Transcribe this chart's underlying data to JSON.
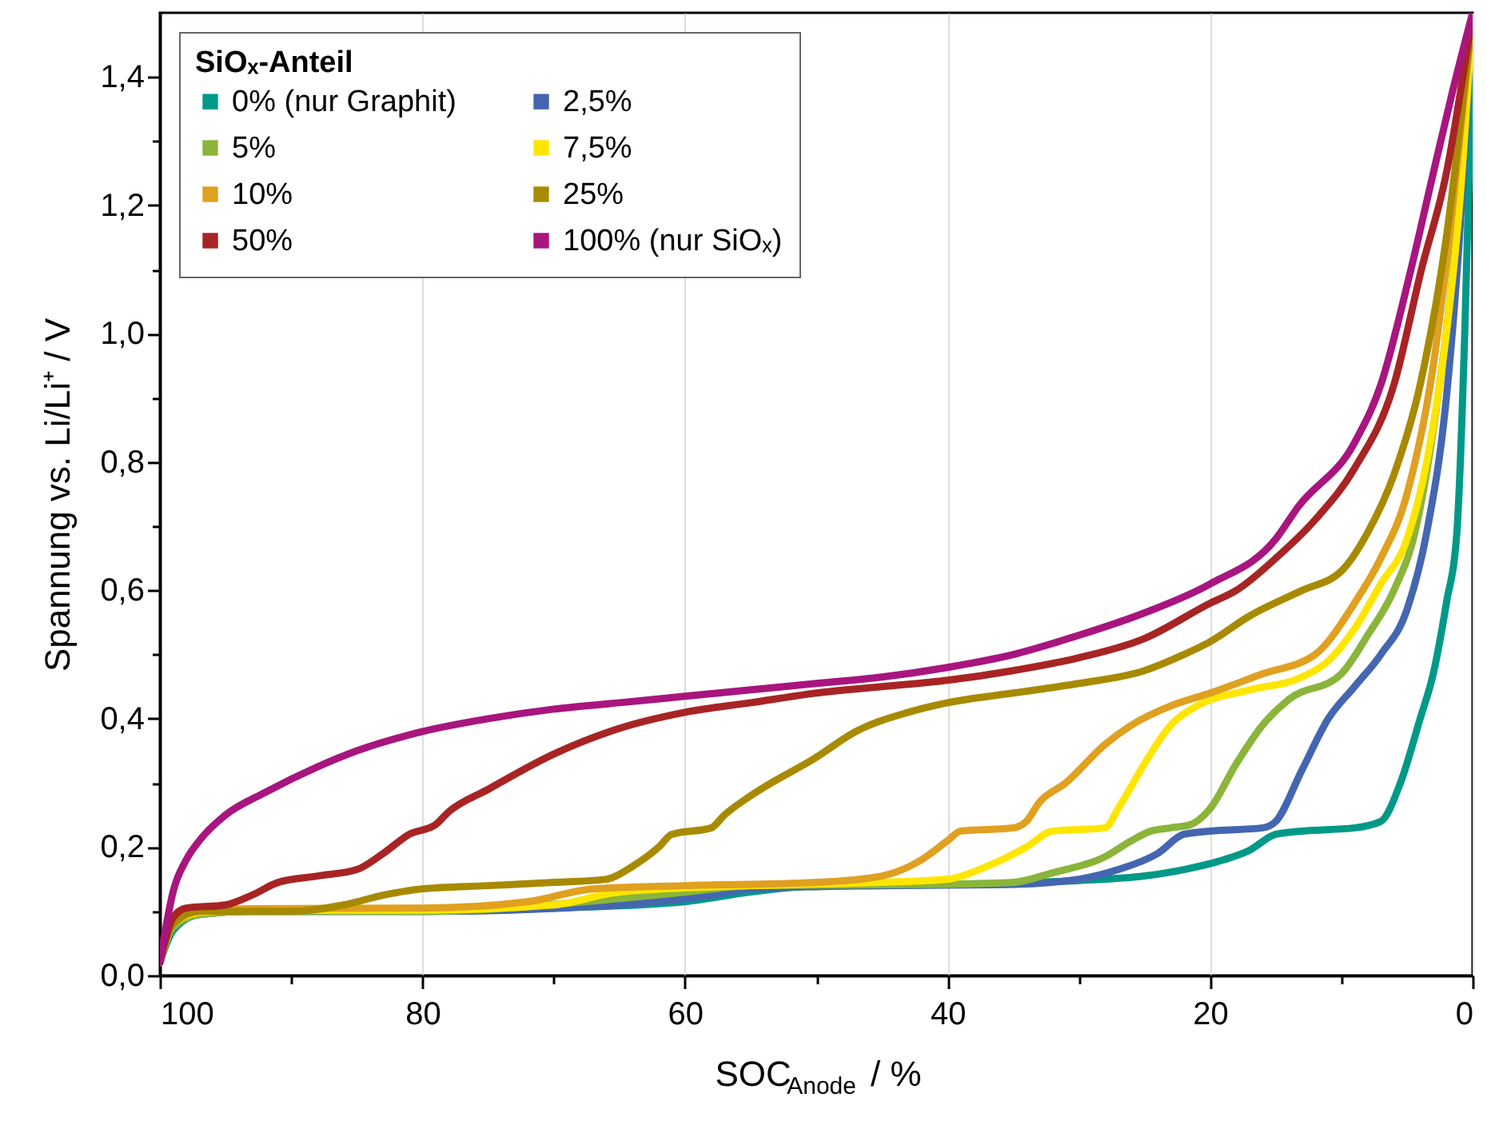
{
  "chart_data": {
    "type": "line",
    "xlabel": "SOC$_{Anode}$ / %",
    "ylabel": "Spannung vs. Li/Li⁺ / V",
    "legend_title": "SiOₓ-Anteil",
    "legend": "top left",
    "grid": "x",
    "line_style": "solid",
    "marker": "none",
    "xlim": [
      100,
      0
    ],
    "ylim": [
      0,
      1.5
    ],
    "xticks": [
      100,
      {
        "value": 90,
        "label": null
      },
      80,
      {
        "value": 70,
        "label": null
      },
      60,
      {
        "value": 50,
        "label": null
      },
      40,
      {
        "value": 30,
        "label": null
      },
      20,
      {
        "value": 10,
        "label": null
      },
      0
    ],
    "yticks": [
      {
        "value": 0,
        "label": "0,0"
      },
      {
        "value": 0.1,
        "label": null
      },
      {
        "value": 0.2,
        "label": "0,2"
      },
      {
        "value": 0.3,
        "label": null
      },
      {
        "value": 0.4,
        "label": "0,4"
      },
      {
        "value": 0.5,
        "label": null
      },
      {
        "value": 0.6,
        "label": "0,6"
      },
      {
        "value": 0.7,
        "label": null
      },
      {
        "value": 0.8,
        "label": "0,8"
      },
      {
        "value": 0.9,
        "label": null
      },
      {
        "value": 1.0,
        "label": "1,0"
      },
      {
        "value": 1.1,
        "label": null
      },
      {
        "value": 1.2,
        "label": "1,2"
      },
      {
        "value": 1.3,
        "label": null
      },
      {
        "value": 1.4,
        "label": "1,4"
      }
    ],
    "series": [
      {
        "name": "0% (nur Graphit)",
        "color": "#009988",
        "x": [
          100,
          99,
          97,
          93,
          80,
          70,
          60,
          55,
          50,
          40,
          30,
          25,
          22,
          19,
          17,
          15,
          13,
          9,
          7,
          5.5,
          4,
          3,
          2,
          1.2,
          0.6,
          0.2,
          0
        ],
        "values": [
          0.02,
          0.07,
          0.095,
          0.1,
          0.1,
          0.105,
          0.115,
          0.13,
          0.14,
          0.142,
          0.148,
          0.155,
          0.165,
          0.18,
          0.195,
          0.22,
          0.225,
          0.23,
          0.24,
          0.3,
          0.4,
          0.47,
          0.58,
          0.69,
          1.0,
          1.3,
          1.5
        ]
      },
      {
        "name": "2,5%",
        "color": "#4466b0",
        "x": [
          93,
          80,
          65,
          58,
          55,
          45,
          35,
          30,
          27,
          24,
          22,
          20,
          16,
          15,
          13,
          11,
          9,
          7,
          5,
          3.5,
          2,
          1,
          0
        ],
        "values": [
          0.1,
          0.1,
          0.11,
          0.125,
          0.135,
          0.14,
          0.142,
          0.15,
          0.165,
          0.19,
          0.22,
          0.225,
          0.23,
          0.24,
          0.32,
          0.4,
          0.45,
          0.5,
          0.57,
          0.69,
          0.9,
          1.15,
          1.5
        ]
      },
      {
        "name": "5%",
        "color": "#8ab53a",
        "x": [
          100,
          99,
          97,
          93,
          80,
          65,
          60,
          55,
          40,
          35,
          32,
          28,
          26,
          24.5,
          23,
          21.5,
          20,
          18,
          16,
          14,
          10,
          8,
          6,
          4.4,
          3,
          1.5,
          0
        ],
        "values": [
          0.02,
          0.075,
          0.095,
          0.1,
          0.1,
          0.12,
          0.13,
          0.14,
          0.142,
          0.145,
          0.16,
          0.185,
          0.21,
          0.225,
          0.23,
          0.235,
          0.26,
          0.33,
          0.39,
          0.43,
          0.47,
          0.53,
          0.6,
          0.69,
          0.85,
          1.1,
          1.5
        ]
      },
      {
        "name": "7,5%",
        "color": "#ffe600",
        "x": [
          100,
          99,
          97,
          93,
          80,
          70,
          65,
          55,
          45,
          40,
          37,
          34,
          32,
          28,
          27,
          25,
          23,
          21,
          17,
          13,
          11,
          9,
          7,
          5,
          3.5,
          2,
          1,
          0
        ],
        "values": [
          0.02,
          0.08,
          0.098,
          0.102,
          0.102,
          0.11,
          0.13,
          0.14,
          0.145,
          0.15,
          0.17,
          0.2,
          0.225,
          0.23,
          0.26,
          0.33,
          0.39,
          0.42,
          0.445,
          0.465,
          0.49,
          0.54,
          0.61,
          0.68,
          0.8,
          1.0,
          1.2,
          1.5
        ]
      },
      {
        "name": "10%",
        "color": "#e0a020",
        "x": [
          100,
          99,
          97,
          93,
          80,
          72,
          67,
          60,
          50,
          45,
          42,
          40,
          39,
          35,
          34,
          33,
          31,
          28,
          26,
          23,
          20,
          16,
          12,
          9,
          7,
          5,
          3,
          1.5,
          0
        ],
        "values": [
          0.02,
          0.085,
          0.1,
          0.104,
          0.105,
          0.115,
          0.135,
          0.14,
          0.145,
          0.155,
          0.18,
          0.21,
          0.225,
          0.23,
          0.24,
          0.27,
          0.3,
          0.36,
          0.39,
          0.42,
          0.44,
          0.47,
          0.5,
          0.58,
          0.65,
          0.75,
          0.95,
          1.2,
          1.5
        ]
      },
      {
        "name": "25%",
        "color": "#a88a00",
        "x": [
          100,
          99,
          97,
          90,
          86,
          83,
          80,
          75,
          70,
          66,
          64,
          62,
          61,
          58,
          57,
          55,
          50,
          47,
          43,
          40,
          35,
          30,
          25,
          22,
          20,
          17,
          13,
          10,
          8,
          6,
          4,
          2,
          0
        ],
        "values": [
          0.02,
          0.08,
          0.1,
          0.1,
          0.11,
          0.125,
          0.135,
          0.14,
          0.145,
          0.15,
          0.17,
          0.2,
          0.22,
          0.23,
          0.25,
          0.28,
          0.34,
          0.38,
          0.41,
          0.425,
          0.44,
          0.455,
          0.475,
          0.5,
          0.52,
          0.56,
          0.6,
          0.63,
          0.69,
          0.78,
          0.92,
          1.15,
          1.5
        ]
      },
      {
        "name": "50%",
        "color": "#a82424",
        "x": [
          100,
          99,
          98,
          95,
          93,
          91,
          88,
          85,
          83,
          81,
          79,
          78,
          75,
          70,
          65,
          60,
          55,
          50,
          45,
          40,
          35,
          30,
          25,
          20,
          18,
          15,
          12,
          9,
          6,
          3.9,
          2,
          0
        ],
        "values": [
          0.02,
          0.09,
          0.105,
          0.11,
          0.125,
          0.145,
          0.155,
          0.165,
          0.19,
          0.22,
          0.235,
          0.255,
          0.29,
          0.345,
          0.385,
          0.41,
          0.425,
          0.44,
          0.45,
          0.46,
          0.475,
          0.495,
          0.525,
          0.58,
          0.6,
          0.65,
          0.71,
          0.79,
          0.92,
          1.1,
          1.25,
          1.5
        ]
      },
      {
        "name": "100% (nur SiOₓ)",
        "color": "#a8157e",
        "x": [
          100,
          99.5,
          99,
          98,
          97,
          95,
          92,
          88,
          85,
          80,
          75,
          70,
          65,
          60,
          55,
          50,
          45,
          40,
          35,
          30,
          25,
          20,
          15,
          13.3,
          9,
          7,
          4.7,
          3,
          1.5,
          0
        ],
        "values": [
          0.02,
          0.08,
          0.13,
          0.18,
          0.21,
          0.25,
          0.285,
          0.325,
          0.35,
          0.38,
          0.4,
          0.415,
          0.425,
          0.435,
          0.445,
          0.455,
          0.465,
          0.48,
          0.5,
          0.53,
          0.565,
          0.61,
          0.68,
          0.73,
          0.83,
          0.92,
          1.1,
          1.25,
          1.38,
          1.5
        ]
      }
    ]
  }
}
